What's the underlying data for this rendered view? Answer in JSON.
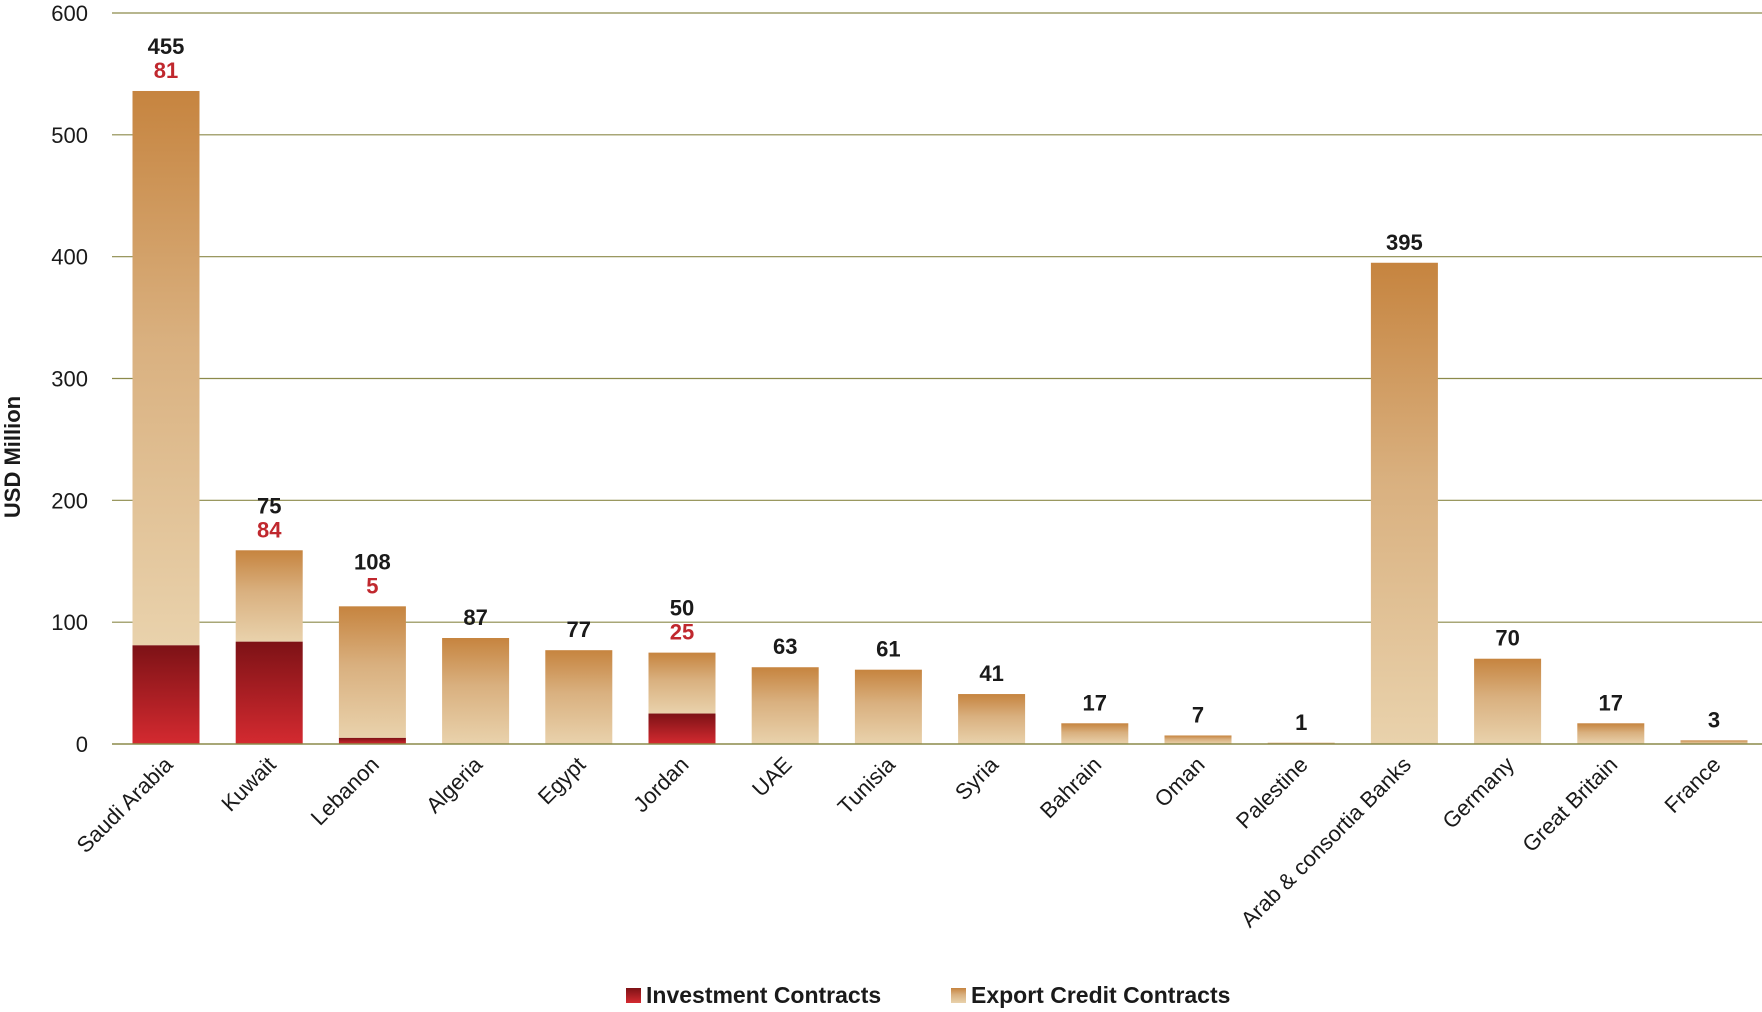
{
  "chart_data": {
    "type": "bar",
    "stacked": true,
    "ylabel": "USD Million",
    "ylim": [
      0,
      600
    ],
    "yticks": [
      0,
      100,
      200,
      300,
      400,
      500,
      600
    ],
    "grid": true,
    "legend_position": "bottom",
    "categories": [
      "Saudi Arabia",
      "Kuwait",
      "Lebanon",
      "Algeria",
      "Egypt",
      "Jordan",
      "UAE",
      "Tunisia",
      "Syria",
      "Bahrain",
      "Oman",
      "Palestine",
      "Arab & consortia Banks",
      "Germany",
      "Great Britain",
      "France"
    ],
    "series": [
      {
        "name": "Investment Contracts",
        "color": "#c0282e",
        "values": [
          81,
          84,
          5,
          0,
          0,
          25,
          0,
          0,
          0,
          0,
          0,
          0,
          0,
          0,
          0,
          0
        ]
      },
      {
        "name": "Export Credit Contracts",
        "color": "#c8874a",
        "values": [
          455,
          75,
          108,
          87,
          77,
          50,
          63,
          61,
          41,
          17,
          7,
          1,
          395,
          70,
          17,
          3
        ]
      }
    ]
  }
}
